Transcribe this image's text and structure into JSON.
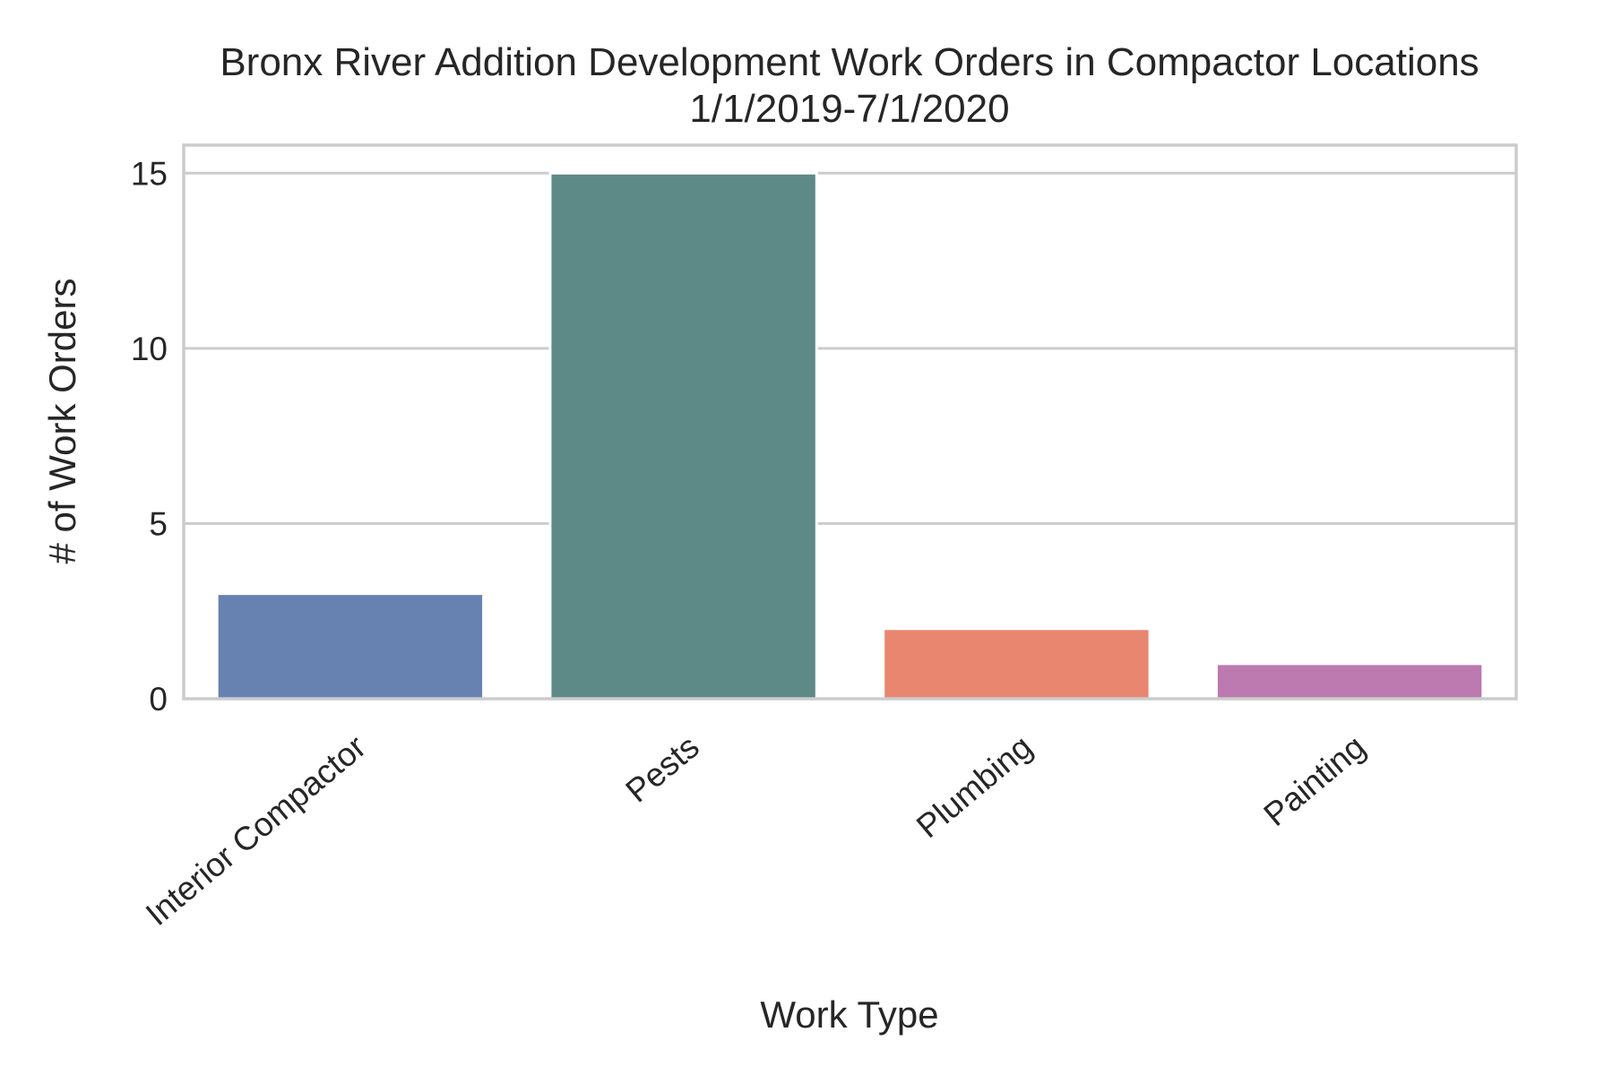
{
  "chart_data": {
    "type": "bar",
    "title": "Bronx River Addition Development Work Orders in Compactor Locations",
    "subtitle": "1/1/2019-7/1/2020",
    "xlabel": "Work Type",
    "ylabel": "# of Work Orders",
    "categories": [
      "Interior Compactor",
      "Pests",
      "Plumbing",
      "Painting"
    ],
    "values": [
      3,
      15,
      2,
      1
    ],
    "colors": [
      "#6781b1",
      "#5d8a87",
      "#e98670",
      "#bc7ab0"
    ],
    "ylim": [
      0,
      15.8
    ],
    "yticks": [
      0,
      5,
      10,
      15
    ],
    "grid": true,
    "legend": "none"
  }
}
